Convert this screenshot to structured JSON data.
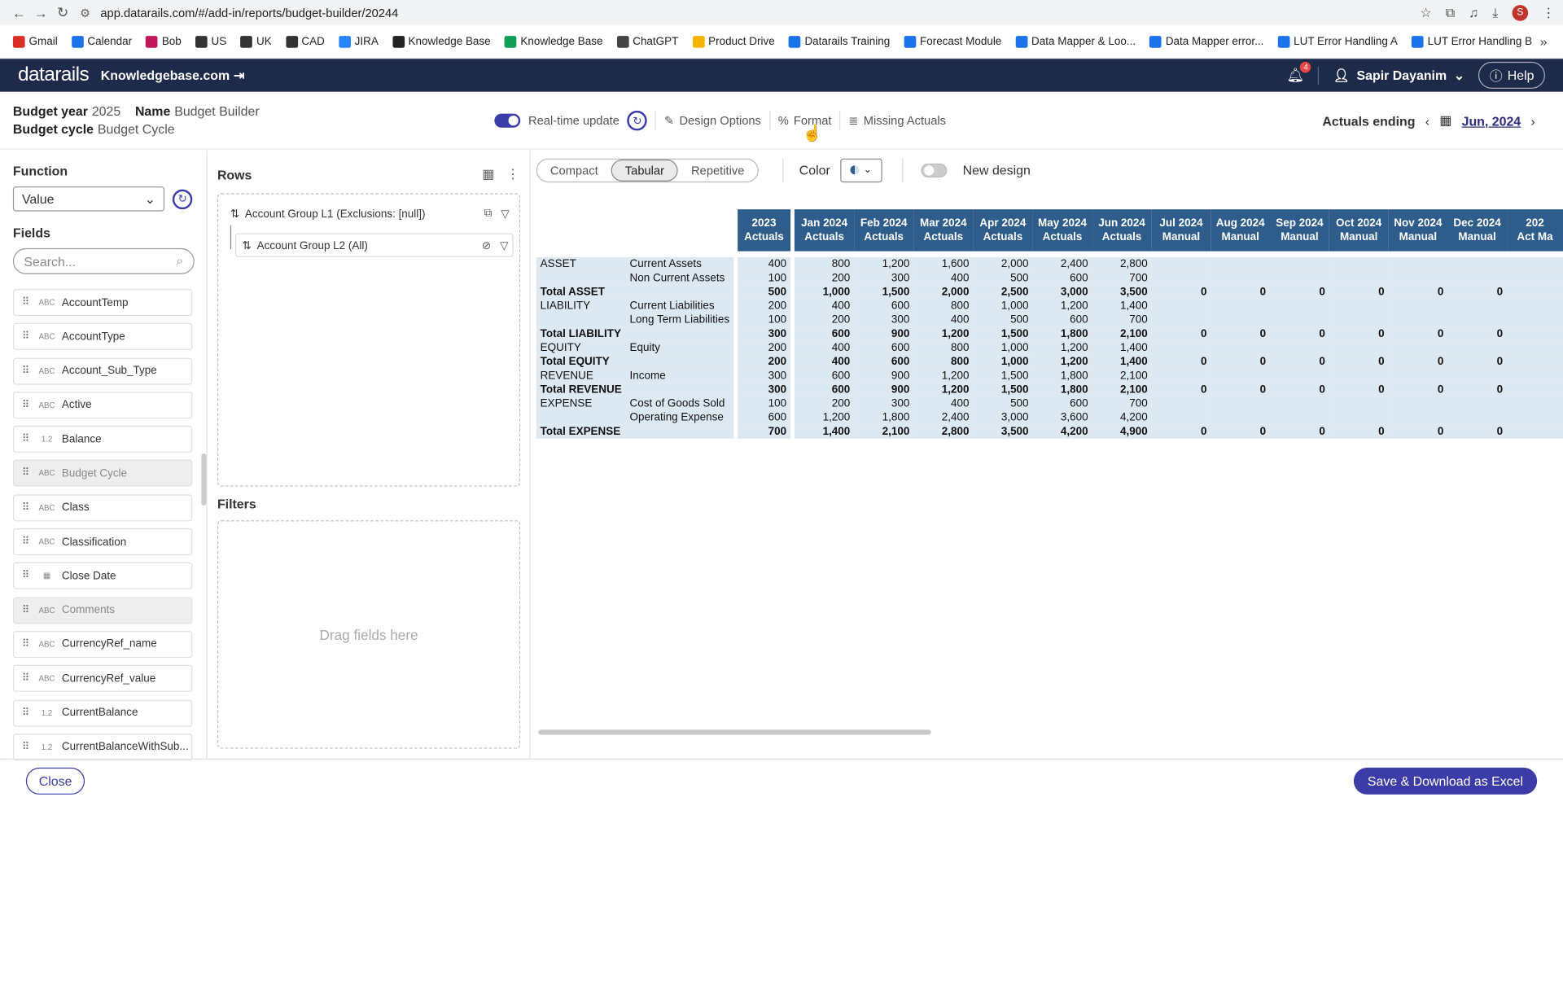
{
  "browser": {
    "url": "app.datarails.com/#/add-in/reports/budget-builder/20244",
    "avatar": "S",
    "bookmarks": [
      {
        "label": "Gmail",
        "color": "#d93025"
      },
      {
        "label": "Calendar",
        "color": "#1a73e8"
      },
      {
        "label": "Bob",
        "color": "#c2185b"
      },
      {
        "label": "US",
        "color": "#333333"
      },
      {
        "label": "UK",
        "color": "#333333"
      },
      {
        "label": "CAD",
        "color": "#333333"
      },
      {
        "label": "JIRA",
        "color": "#2684ff"
      },
      {
        "label": "Knowledge Base",
        "color": "#222222"
      },
      {
        "label": "Knowledge Base",
        "color": "#0f9d58"
      },
      {
        "label": "ChatGPT",
        "color": "#444444"
      },
      {
        "label": "Product Drive",
        "color": "#f4b400"
      },
      {
        "label": "Datarails Training",
        "color": "#1a73e8"
      },
      {
        "label": "Forecast Module",
        "color": "#1a73e8"
      },
      {
        "label": "Data Mapper & Loo...",
        "color": "#1a73e8"
      },
      {
        "label": "Data Mapper error...",
        "color": "#1a73e8"
      },
      {
        "label": "LUT Error Handling A",
        "color": "#1a73e8"
      },
      {
        "label": "LUT Error Handling B",
        "color": "#1a73e8"
      }
    ]
  },
  "header": {
    "logo": "datarails",
    "tenant": "Knowledgebase.com",
    "notifications": "4",
    "user": "Sapir Dayanim",
    "help": "Help"
  },
  "toolbar": {
    "budget_year_label": "Budget year",
    "budget_year": "2025",
    "name_label": "Name",
    "name": "Budget Builder",
    "budget_cycle_label": "Budget cycle",
    "budget_cycle": "Budget Cycle",
    "realtime": "Real-time update",
    "design_options": "Design Options",
    "format": "Format",
    "missing_actuals": "Missing Actuals",
    "actuals_ending": "Actuals ending",
    "date": "Jun, 2024"
  },
  "left": {
    "function_title": "Function",
    "function_value": "Value",
    "fields_title": "Fields",
    "search_placeholder": "Search...",
    "fields": [
      {
        "type": "ABC",
        "name": "AccountTemp",
        "dim": false
      },
      {
        "type": "ABC",
        "name": "AccountType",
        "dim": false
      },
      {
        "type": "ABC",
        "name": "Account_Sub_Type",
        "dim": false
      },
      {
        "type": "ABC",
        "name": "Active",
        "dim": false
      },
      {
        "type": "1.2",
        "name": "Balance",
        "dim": false
      },
      {
        "type": "ABC",
        "name": "Budget Cycle",
        "dim": true
      },
      {
        "type": "ABC",
        "name": "Class",
        "dim": false
      },
      {
        "type": "ABC",
        "name": "Classification",
        "dim": false
      },
      {
        "type": "cal",
        "name": "Close Date",
        "dim": false
      },
      {
        "type": "ABC",
        "name": "Comments",
        "dim": true
      },
      {
        "type": "ABC",
        "name": "CurrencyRef_name",
        "dim": false
      },
      {
        "type": "ABC",
        "name": "CurrencyRef_value",
        "dim": false
      },
      {
        "type": "1.2",
        "name": "CurrentBalance",
        "dim": false
      },
      {
        "type": "1.2",
        "name": "CurrentBalanceWithSub...",
        "dim": false
      }
    ]
  },
  "mid": {
    "rows_title": "Rows",
    "row1": "Account Group L1 (Exclusions: [null])",
    "row2": "Account Group L2 (All)",
    "filters_title": "Filters",
    "drag_hint": "Drag fields here"
  },
  "right": {
    "views": [
      "Compact",
      "Tabular",
      "Repetitive"
    ],
    "active_view": "Tabular",
    "color_label": "Color",
    "new_design": "New design",
    "columns": [
      {
        "top": "2023",
        "bottom": "Actuals"
      },
      {
        "top": "Jan 2024",
        "bottom": "Actuals"
      },
      {
        "top": "Feb 2024",
        "bottom": "Actuals"
      },
      {
        "top": "Mar 2024",
        "bottom": "Actuals"
      },
      {
        "top": "Apr 2024",
        "bottom": "Actuals"
      },
      {
        "top": "May 2024",
        "bottom": "Actuals"
      },
      {
        "top": "Jun 2024",
        "bottom": "Actuals"
      },
      {
        "top": "Jul 2024",
        "bottom": "Manual"
      },
      {
        "top": "Aug 2024",
        "bottom": "Manual"
      },
      {
        "top": "Sep 2024",
        "bottom": "Manual"
      },
      {
        "top": "Oct 2024",
        "bottom": "Manual"
      },
      {
        "top": "Nov 2024",
        "bottom": "Manual"
      },
      {
        "top": "Dec 2024",
        "bottom": "Manual"
      },
      {
        "top": "202",
        "bottom": "Act Ma"
      }
    ],
    "rows": [
      {
        "l1": "ASSET",
        "l2": "Current Assets",
        "total": false,
        "vals": [
          "400",
          "800",
          "1,200",
          "1,600",
          "2,000",
          "2,400",
          "2,800",
          "",
          "",
          "",
          "",
          "",
          "",
          ""
        ]
      },
      {
        "l1": "",
        "l2": "Non Current Assets",
        "total": false,
        "vals": [
          "100",
          "200",
          "300",
          "400",
          "500",
          "600",
          "700",
          "",
          "",
          "",
          "",
          "",
          "",
          ""
        ]
      },
      {
        "l1": "Total ASSET",
        "l2": "",
        "total": true,
        "vals": [
          "500",
          "1,000",
          "1,500",
          "2,000",
          "2,500",
          "3,000",
          "3,500",
          "0",
          "0",
          "0",
          "0",
          "0",
          "0",
          ""
        ]
      },
      {
        "l1": "LIABILITY",
        "l2": "Current Liabilities",
        "total": false,
        "vals": [
          "200",
          "400",
          "600",
          "800",
          "1,000",
          "1,200",
          "1,400",
          "",
          "",
          "",
          "",
          "",
          "",
          ""
        ]
      },
      {
        "l1": "",
        "l2": "Long Term Liabilities",
        "total": false,
        "vals": [
          "100",
          "200",
          "300",
          "400",
          "500",
          "600",
          "700",
          "",
          "",
          "",
          "",
          "",
          "",
          ""
        ]
      },
      {
        "l1": "Total LIABILITY",
        "l2": "",
        "total": true,
        "vals": [
          "300",
          "600",
          "900",
          "1,200",
          "1,500",
          "1,800",
          "2,100",
          "0",
          "0",
          "0",
          "0",
          "0",
          "0",
          ""
        ]
      },
      {
        "l1": "EQUITY",
        "l2": "Equity",
        "total": false,
        "vals": [
          "200",
          "400",
          "600",
          "800",
          "1,000",
          "1,200",
          "1,400",
          "",
          "",
          "",
          "",
          "",
          "",
          ""
        ]
      },
      {
        "l1": "Total EQUITY",
        "l2": "",
        "total": true,
        "vals": [
          "200",
          "400",
          "600",
          "800",
          "1,000",
          "1,200",
          "1,400",
          "0",
          "0",
          "0",
          "0",
          "0",
          "0",
          ""
        ]
      },
      {
        "l1": "REVENUE",
        "l2": "Income",
        "total": false,
        "vals": [
          "300",
          "600",
          "900",
          "1,200",
          "1,500",
          "1,800",
          "2,100",
          "",
          "",
          "",
          "",
          "",
          "",
          ""
        ]
      },
      {
        "l1": "Total REVENUE",
        "l2": "",
        "total": true,
        "vals": [
          "300",
          "600",
          "900",
          "1,200",
          "1,500",
          "1,800",
          "2,100",
          "0",
          "0",
          "0",
          "0",
          "0",
          "0",
          ""
        ]
      },
      {
        "l1": "EXPENSE",
        "l2": "Cost of Goods Sold",
        "total": false,
        "vals": [
          "100",
          "200",
          "300",
          "400",
          "500",
          "600",
          "700",
          "",
          "",
          "",
          "",
          "",
          "",
          ""
        ]
      },
      {
        "l1": "",
        "l2": "Operating Expense",
        "total": false,
        "vals": [
          "600",
          "1,200",
          "1,800",
          "2,400",
          "3,000",
          "3,600",
          "4,200",
          "",
          "",
          "",
          "",
          "",
          "",
          ""
        ]
      },
      {
        "l1": "Total EXPENSE",
        "l2": "",
        "total": true,
        "vals": [
          "700",
          "1,400",
          "2,100",
          "2,800",
          "3,500",
          "4,200",
          "4,900",
          "0",
          "0",
          "0",
          "0",
          "0",
          "0",
          ""
        ]
      }
    ]
  },
  "footer": {
    "close": "Close",
    "save": "Save & Download as Excel"
  },
  "colors": {
    "brand": "#1e2a4a",
    "accent": "#3c3ca8",
    "header_cell": "#2e5d8c",
    "body_cell": "#dce8f2"
  }
}
